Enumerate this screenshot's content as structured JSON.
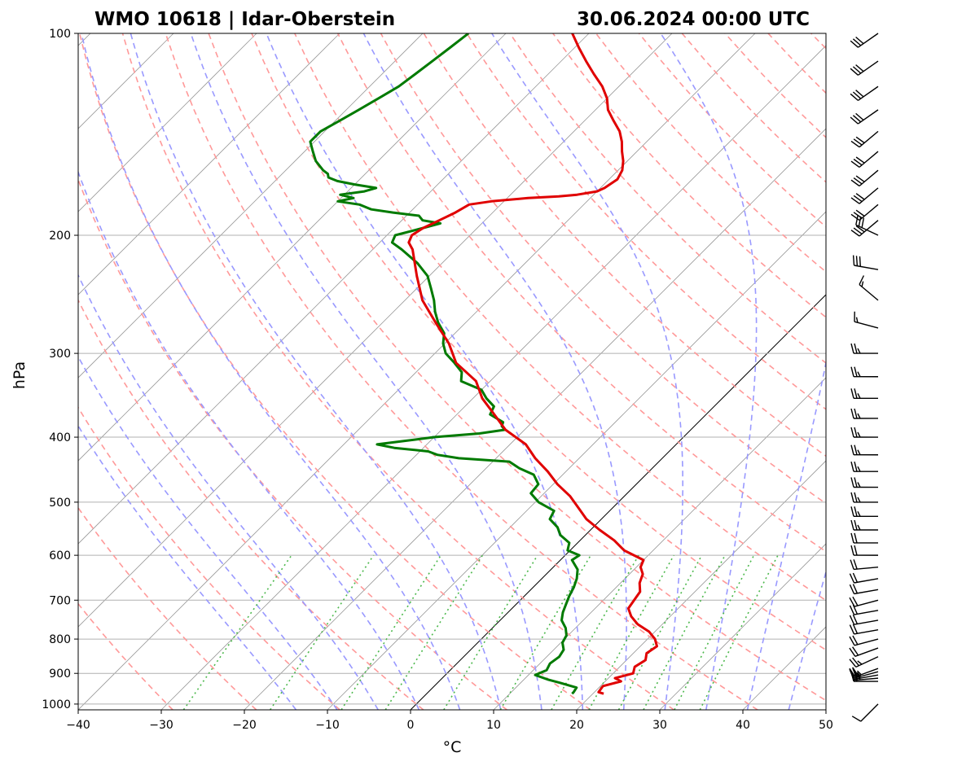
{
  "chart_data": {
    "type": "skew-t",
    "station_label": "WMO 10618 | Idar-Oberstein",
    "datetime_label": "30.06.2024 00:00 UTC",
    "xlabel": "°C",
    "ylabel": "hPa",
    "xlim": [
      -40,
      50
    ],
    "ylim_hpa": [
      1020,
      100
    ],
    "skew_deg_per_decade_factor": 1,
    "x_ticks": [
      {
        "value": -40,
        "label": "−40"
      },
      {
        "value": -30,
        "label": "−30"
      },
      {
        "value": -20,
        "label": "−20"
      },
      {
        "value": -10,
        "label": "−10"
      },
      {
        "value": 0,
        "label": "0"
      },
      {
        "value": 10,
        "label": "10"
      },
      {
        "value": 20,
        "label": "20"
      },
      {
        "value": 30,
        "label": "30"
      },
      {
        "value": 40,
        "label": "40"
      },
      {
        "value": 50,
        "label": "50"
      }
    ],
    "y_ticks": [
      {
        "value": 100,
        "label": "100"
      },
      {
        "value": 200,
        "label": "200"
      },
      {
        "value": 300,
        "label": "300"
      },
      {
        "value": 400,
        "label": "400"
      },
      {
        "value": 500,
        "label": "500"
      },
      {
        "value": 600,
        "label": "600"
      },
      {
        "value": 700,
        "label": "700"
      },
      {
        "value": 800,
        "label": "800"
      },
      {
        "value": 900,
        "label": "900"
      },
      {
        "value": 1000,
        "label": "1000"
      }
    ],
    "colors": {
      "temperature": "#e00000",
      "dewpoint": "#007a00",
      "dry_adiabat": "#ff9999",
      "moist_adiabat": "#9999ff",
      "mixing_ratio": "#4cb84c",
      "isotherm": "#999999",
      "isobar": "#b0b0b0",
      "zero_isotherm": "#000000"
    },
    "temperature": {
      "name": "Temperature",
      "pressure": [
        965,
        960,
        940,
        925,
        915,
        900,
        880,
        860,
        840,
        820,
        800,
        780,
        760,
        740,
        720,
        700,
        680,
        660,
        640,
        625,
        610,
        590,
        570,
        550,
        530,
        510,
        490,
        470,
        450,
        430,
        410,
        390,
        370,
        350,
        330,
        310,
        290,
        270,
        250,
        230,
        210,
        205,
        200,
        195,
        190,
        185,
        180,
        178,
        176,
        175,
        174,
        172,
        170,
        165,
        160,
        155,
        150,
        145,
        140,
        135,
        130,
        125,
        120,
        115,
        110,
        105,
        100
      ],
      "values": [
        21.3,
        20.5,
        20.3,
        21.9,
        20.8,
        22.4,
        21.8,
        22.3,
        21.6,
        22.0,
        20.9,
        19.3,
        17.0,
        15.3,
        14.0,
        13.7,
        13.4,
        12.3,
        11.6,
        10.5,
        10.0,
        6.5,
        4.1,
        1.1,
        -1.8,
        -4.1,
        -6.5,
        -9.5,
        -12.2,
        -15.3,
        -18.1,
        -22.3,
        -25.5,
        -28.9,
        -31.7,
        -36.3,
        -39.5,
        -43.6,
        -47.9,
        -51.5,
        -55.2,
        -56.5,
        -57.0,
        -56.5,
        -55.5,
        -54.5,
        -53.8,
        -51.5,
        -47.5,
        -44.0,
        -42.0,
        -40.0,
        -39.5,
        -39.0,
        -39.5,
        -40.5,
        -41.8,
        -43.0,
        -44.5,
        -46.5,
        -48.5,
        -50.0,
        -52.0,
        -54.5,
        -57.0,
        -59.5,
        -62.0
      ]
    },
    "dewpoint": {
      "name": "Dew point",
      "pressure": [
        965,
        960,
        945,
        930,
        920,
        905,
        890,
        870,
        850,
        830,
        810,
        790,
        770,
        750,
        730,
        710,
        690,
        670,
        650,
        630,
        610,
        600,
        590,
        575,
        560,
        545,
        530,
        515,
        500,
        485,
        470,
        455,
        445,
        435,
        430,
        425,
        420,
        415,
        410,
        405,
        400,
        395,
        390,
        385,
        380,
        370,
        360,
        350,
        340,
        330,
        320,
        310,
        300,
        290,
        280,
        270,
        260,
        250,
        240,
        230,
        220,
        210,
        205,
        200,
        195,
        192,
        190,
        187,
        185,
        183,
        180,
        178,
        176,
        174,
        172,
        170,
        168,
        166,
        164,
        162,
        160,
        155,
        150,
        145,
        140,
        135,
        130,
        125,
        120,
        115,
        110,
        105,
        100
      ],
      "values": [
        17.5,
        17.5,
        17.3,
        14.8,
        13.0,
        10.8,
        11.6,
        11.2,
        11.5,
        11.2,
        10.2,
        9.8,
        8.8,
        7.4,
        6.6,
        6.0,
        5.4,
        4.9,
        4.2,
        3.2,
        1.4,
        1.7,
        -0.3,
        -1.0,
        -3.0,
        -4.3,
        -6.2,
        -6.7,
        -9.6,
        -11.6,
        -11.8,
        -13.5,
        -16.0,
        -18.0,
        -24.5,
        -27.5,
        -29.0,
        -33.5,
        -36.0,
        -33.0,
        -30.0,
        -25.0,
        -22.4,
        -23.2,
        -23.5,
        -26.0,
        -26.5,
        -28.4,
        -30.0,
        -33.5,
        -34.5,
        -36.5,
        -38.7,
        -40.2,
        -41.3,
        -43.3,
        -45.0,
        -46.5,
        -48.3,
        -50.2,
        -53.0,
        -56.5,
        -58.5,
        -59.0,
        -56.5,
        -55.0,
        -57.5,
        -58.5,
        -62.0,
        -65.0,
        -67.0,
        -70.0,
        -68.5,
        -70.5,
        -68.0,
        -67.0,
        -70.0,
        -72.5,
        -74.0,
        -74.5,
        -75.5,
        -77.5,
        -79.0,
        -80.5,
        -80.5,
        -79.5,
        -78.5,
        -77.5,
        -76.5,
        -76.0,
        -75.5,
        -75.0,
        -74.5
      ]
    },
    "wind_barbs": {
      "pressure": [
        1000,
        925,
        915,
        905,
        895,
        885,
        850,
        825,
        800,
        775,
        750,
        725,
        700,
        675,
        650,
        625,
        600,
        575,
        550,
        525,
        500,
        475,
        450,
        425,
        400,
        375,
        350,
        325,
        300,
        275,
        250,
        225,
        200,
        190,
        180,
        170,
        160,
        150,
        140,
        130,
        120,
        110,
        100
      ],
      "direction_deg": [
        225,
        270,
        265,
        260,
        255,
        250,
        245,
        250,
        255,
        260,
        260,
        260,
        255,
        260,
        260,
        265,
        270,
        270,
        270,
        270,
        270,
        270,
        270,
        270,
        270,
        270,
        270,
        270,
        270,
        285,
        310,
        280,
        295,
        230,
        230,
        230,
        230,
        230,
        230,
        235,
        235,
        235,
        235
      ],
      "speed_kt": [
        10,
        20,
        25,
        25,
        25,
        25,
        25,
        20,
        20,
        20,
        20,
        20,
        20,
        20,
        20,
        20,
        20,
        20,
        25,
        25,
        25,
        25,
        25,
        25,
        25,
        25,
        25,
        25,
        25,
        15,
        15,
        30,
        30,
        30,
        30,
        30,
        30,
        30,
        30,
        30,
        30,
        30,
        30
      ]
    }
  }
}
